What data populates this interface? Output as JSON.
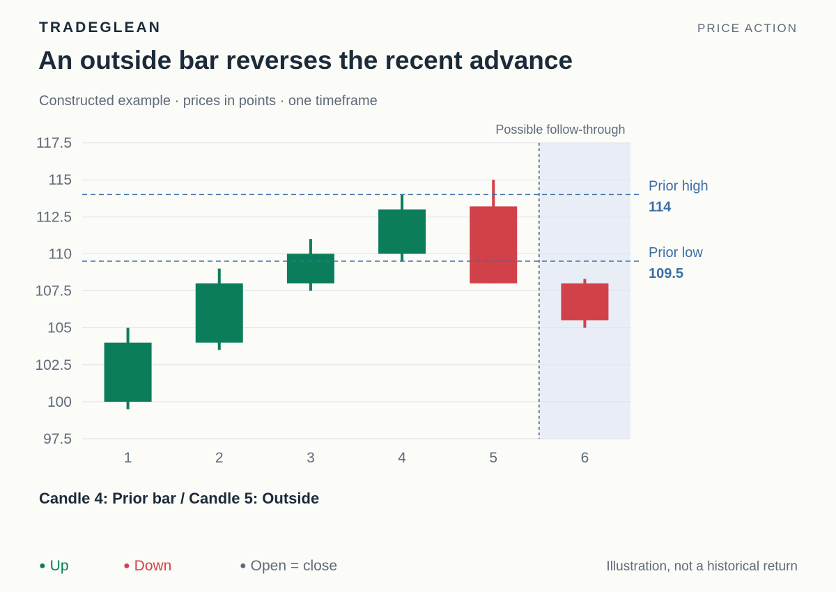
{
  "header": {
    "brand": "TRADEGLEAN",
    "section": "PRICE ACTION",
    "title": "An outside bar reverses the recent advance",
    "subtitle": "Constructed example · prices in points · one timeframe"
  },
  "caption": "Candle 4: Prior bar / Candle 5: Outside",
  "legend": [
    {
      "label": "Up",
      "color": "#0b7d5b"
    },
    {
      "label": "Down",
      "color": "#d1414a"
    },
    {
      "label": "Open = close",
      "color": "#5f6b79"
    }
  ],
  "note": "Illustration, not a historical return",
  "colors": {
    "up": "#0b7d5b",
    "down": "#d1414a",
    "reference": "#3b6ea5",
    "grid": "#dfe3ea",
    "axis_text": "#5f6b79",
    "shade": "#e9eef6"
  },
  "chart_data": {
    "type": "candlestick",
    "x": [
      1,
      2,
      3,
      4,
      5,
      6
    ],
    "candles": [
      {
        "x": 1,
        "open": 100,
        "high": 105,
        "low": 99.5,
        "close": 104
      },
      {
        "x": 2,
        "open": 104,
        "high": 109,
        "low": 103.5,
        "close": 108
      },
      {
        "x": 3,
        "open": 108,
        "high": 111,
        "low": 107.5,
        "close": 110
      },
      {
        "x": 4,
        "open": 110,
        "high": 114,
        "low": 109.5,
        "close": 113
      },
      {
        "x": 5,
        "open": 113.2,
        "high": 115,
        "low": 108,
        "close": 108
      },
      {
        "x": 6,
        "open": 108,
        "high": 108.3,
        "low": 105,
        "close": 105.5
      }
    ],
    "ylim": [
      97.5,
      117.5
    ],
    "yticks": [
      97.5,
      100,
      102.5,
      105,
      107.5,
      110,
      112.5,
      115,
      117.5
    ],
    "ytick_labels": [
      "97.5",
      "100",
      "102.5",
      "105",
      "107.5",
      "110",
      "112.5",
      "115",
      "117.5"
    ],
    "reference_lines": [
      {
        "label": "Prior high",
        "value": 114,
        "value_label": "114"
      },
      {
        "label": "Prior low",
        "value": 109.5,
        "value_label": "109.5"
      }
    ],
    "shaded_region": {
      "label": "Possible follow-through",
      "x_start": 5.5,
      "x_end": 6.5
    },
    "grid": true
  }
}
